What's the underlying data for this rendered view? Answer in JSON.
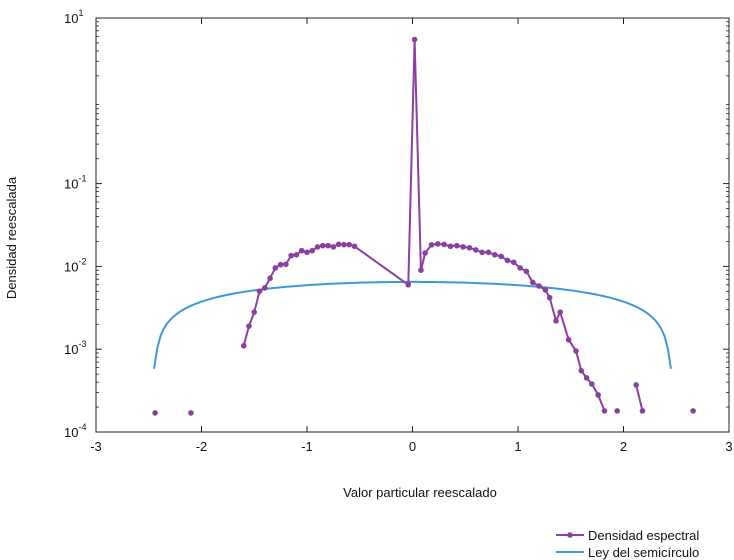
{
  "chart_data": {
    "type": "line",
    "xlabel": "Valor particular reescalado",
    "ylabel": "Densidad reescalada",
    "xlim": [
      -3,
      3
    ],
    "ylim": [
      0.0001,
      10
    ],
    "y_scale": "log",
    "x_ticks": [
      "-3",
      "-2",
      "-1",
      "0",
      "1",
      "2",
      "3"
    ],
    "y_ticks": [
      {
        "base": "10",
        "exp": "1",
        "value": 10
      },
      {
        "base": "10",
        "exp": "-1",
        "value": 0.1
      },
      {
        "base": "10",
        "exp": "-2",
        "value": 0.01
      },
      {
        "base": "10",
        "exp": "-3",
        "value": 0.001
      },
      {
        "base": "10",
        "exp": "-4",
        "value": 0.0001
      }
    ],
    "grid": false,
    "legend_position": "bottom-right",
    "series": [
      {
        "name": "Densidad espectral",
        "color": "#8b3fa0",
        "marker": "circle",
        "points": [
          [
            -2.44,
            0.00017,
            false
          ],
          [
            -2.1,
            0.00017,
            false
          ],
          [
            -1.6,
            0.0011,
            false
          ],
          [
            -1.55,
            0.0019,
            true
          ],
          [
            -1.5,
            0.0028,
            true
          ],
          [
            -1.45,
            0.005,
            true
          ],
          [
            -1.4,
            0.0055,
            true
          ],
          [
            -1.35,
            0.0072,
            true
          ],
          [
            -1.3,
            0.0096,
            true
          ],
          [
            -1.25,
            0.0105,
            true
          ],
          [
            -1.2,
            0.0106,
            true
          ],
          [
            -1.15,
            0.0135,
            true
          ],
          [
            -1.1,
            0.0138,
            true
          ],
          [
            -1.05,
            0.0155,
            true
          ],
          [
            -1.0,
            0.0148,
            true
          ],
          [
            -0.95,
            0.0155,
            true
          ],
          [
            -0.9,
            0.0172,
            true
          ],
          [
            -0.85,
            0.0178,
            true
          ],
          [
            -0.8,
            0.0178,
            true
          ],
          [
            -0.75,
            0.0172,
            true
          ],
          [
            -0.7,
            0.0185,
            true
          ],
          [
            -0.65,
            0.0183,
            true
          ],
          [
            -0.6,
            0.0183,
            true
          ],
          [
            -0.55,
            0.0175,
            true
          ],
          [
            -0.04,
            0.006,
            true
          ],
          [
            0.02,
            5.5,
            true
          ],
          [
            0.08,
            0.009,
            true
          ],
          [
            0.12,
            0.0145,
            true
          ],
          [
            0.18,
            0.0182,
            true
          ],
          [
            0.24,
            0.0187,
            true
          ],
          [
            0.3,
            0.0184,
            true
          ],
          [
            0.36,
            0.0175,
            true
          ],
          [
            0.42,
            0.0178,
            true
          ],
          [
            0.48,
            0.0172,
            true
          ],
          [
            0.54,
            0.0168,
            true
          ],
          [
            0.6,
            0.0158,
            true
          ],
          [
            0.66,
            0.0148,
            true
          ],
          [
            0.72,
            0.0148,
            true
          ],
          [
            0.78,
            0.0138,
            true
          ],
          [
            0.84,
            0.0132,
            true
          ],
          [
            0.9,
            0.0118,
            true
          ],
          [
            0.96,
            0.0112,
            true
          ],
          [
            1.02,
            0.0096,
            true
          ],
          [
            1.08,
            0.0087,
            true
          ],
          [
            1.14,
            0.0064,
            true
          ],
          [
            1.2,
            0.0058,
            true
          ],
          [
            1.26,
            0.0052,
            true
          ],
          [
            1.3,
            0.0042,
            true
          ],
          [
            1.36,
            0.0022,
            true
          ],
          [
            1.4,
            0.0028,
            true
          ],
          [
            1.48,
            0.0013,
            true
          ],
          [
            1.55,
            0.00095,
            true
          ],
          [
            1.6,
            0.00055,
            true
          ],
          [
            1.65,
            0.00045,
            true
          ],
          [
            1.7,
            0.00038,
            true
          ],
          [
            1.76,
            0.00028,
            true
          ],
          [
            1.82,
            0.00018,
            true
          ],
          [
            1.94,
            0.00018,
            false
          ],
          [
            2.12,
            0.00037,
            false
          ],
          [
            2.18,
            0.00018,
            true
          ],
          [
            2.66,
            0.00018,
            false
          ]
        ]
      },
      {
        "name": "Ley del semicírculo",
        "color": "#3b9ad6",
        "marker": "none",
        "radius": 2.45,
        "samples": 160
      }
    ]
  }
}
